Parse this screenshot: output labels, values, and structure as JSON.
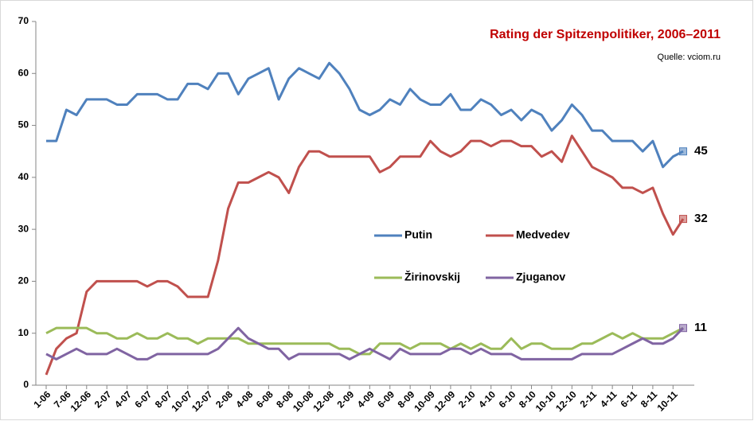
{
  "chart_data": {
    "type": "line",
    "title": "Rating der Spitzenpolitiker, 2006–2011",
    "source": "Quelle: vciom.ru",
    "categories": [
      "1-06",
      null,
      "7-06",
      null,
      "12-06",
      null,
      "2-07",
      null,
      "4-07",
      null,
      "6-07",
      null,
      "8-07",
      null,
      "10-07",
      null,
      "12-07",
      null,
      "2-08",
      null,
      "4-08",
      null,
      "6-08",
      null,
      "8-08",
      null,
      "10-08",
      null,
      "12-08",
      null,
      "2-09",
      null,
      "4-09",
      null,
      "6-09",
      null,
      "8-09",
      null,
      "10-09",
      null,
      "12-09",
      null,
      "2-10",
      null,
      "4-10",
      null,
      "6-10",
      null,
      "8-10",
      null,
      "10-10",
      null,
      "12-10",
      null,
      "2-11",
      null,
      "4-11",
      null,
      "6-11",
      null,
      "8-11",
      null,
      "10-11",
      null
    ],
    "series": [
      {
        "name": "Putin",
        "color": "#4f81bd",
        "values": [
          47,
          47,
          53,
          52,
          55,
          55,
          55,
          54,
          54,
          56,
          56,
          56,
          55,
          55,
          58,
          58,
          57,
          60,
          60,
          56,
          59,
          60,
          61,
          55,
          59,
          61,
          60,
          59,
          62,
          60,
          57,
          53,
          52,
          53,
          55,
          54,
          57,
          55,
          54,
          54,
          56,
          53,
          53,
          55,
          54,
          52,
          53,
          51,
          53,
          52,
          49,
          51,
          54,
          52,
          49,
          49,
          47,
          47,
          47,
          45,
          47,
          42,
          44,
          45
        ]
      },
      {
        "name": "Medvedev",
        "color": "#c0504d",
        "values": [
          2,
          7,
          9,
          10,
          18,
          20,
          20,
          20,
          20,
          20,
          19,
          20,
          20,
          19,
          17,
          17,
          17,
          24,
          34,
          39,
          39,
          40,
          41,
          40,
          37,
          42,
          45,
          45,
          44,
          44,
          44,
          44,
          44,
          41,
          42,
          44,
          44,
          44,
          47,
          45,
          44,
          45,
          47,
          47,
          46,
          47,
          47,
          46,
          46,
          44,
          45,
          43,
          48,
          45,
          42,
          41,
          40,
          38,
          38,
          37,
          38,
          33,
          29,
          32
        ]
      },
      {
        "name": "Žirinovskij",
        "color": "#9bbb59",
        "values": [
          10,
          11,
          11,
          11,
          11,
          10,
          10,
          9,
          9,
          10,
          9,
          9,
          10,
          9,
          9,
          8,
          9,
          9,
          9,
          9,
          8,
          8,
          8,
          8,
          8,
          8,
          8,
          8,
          8,
          7,
          7,
          6,
          6,
          8,
          8,
          8,
          7,
          8,
          8,
          8,
          7,
          8,
          7,
          8,
          7,
          7,
          9,
          7,
          8,
          8,
          7,
          7,
          7,
          8,
          8,
          9,
          10,
          9,
          10,
          9,
          9,
          9,
          10,
          11
        ]
      },
      {
        "name": "Zjuganov",
        "color": "#8064a2",
        "values": [
          6,
          5,
          6,
          7,
          6,
          6,
          6,
          7,
          6,
          5,
          5,
          6,
          6,
          6,
          6,
          6,
          6,
          7,
          9,
          11,
          9,
          8,
          7,
          7,
          5,
          6,
          6,
          6,
          6,
          6,
          5,
          6,
          7,
          6,
          5,
          7,
          6,
          6,
          6,
          6,
          7,
          7,
          6,
          7,
          6,
          6,
          6,
          5,
          5,
          5,
          5,
          5,
          5,
          6,
          6,
          6,
          6,
          7,
          8,
          9,
          8,
          8,
          9,
          11
        ]
      }
    ],
    "ylim": [
      0,
      70
    ],
    "yticks": [
      0,
      10,
      20,
      30,
      40,
      50,
      60,
      70
    ],
    "grid": false
  }
}
